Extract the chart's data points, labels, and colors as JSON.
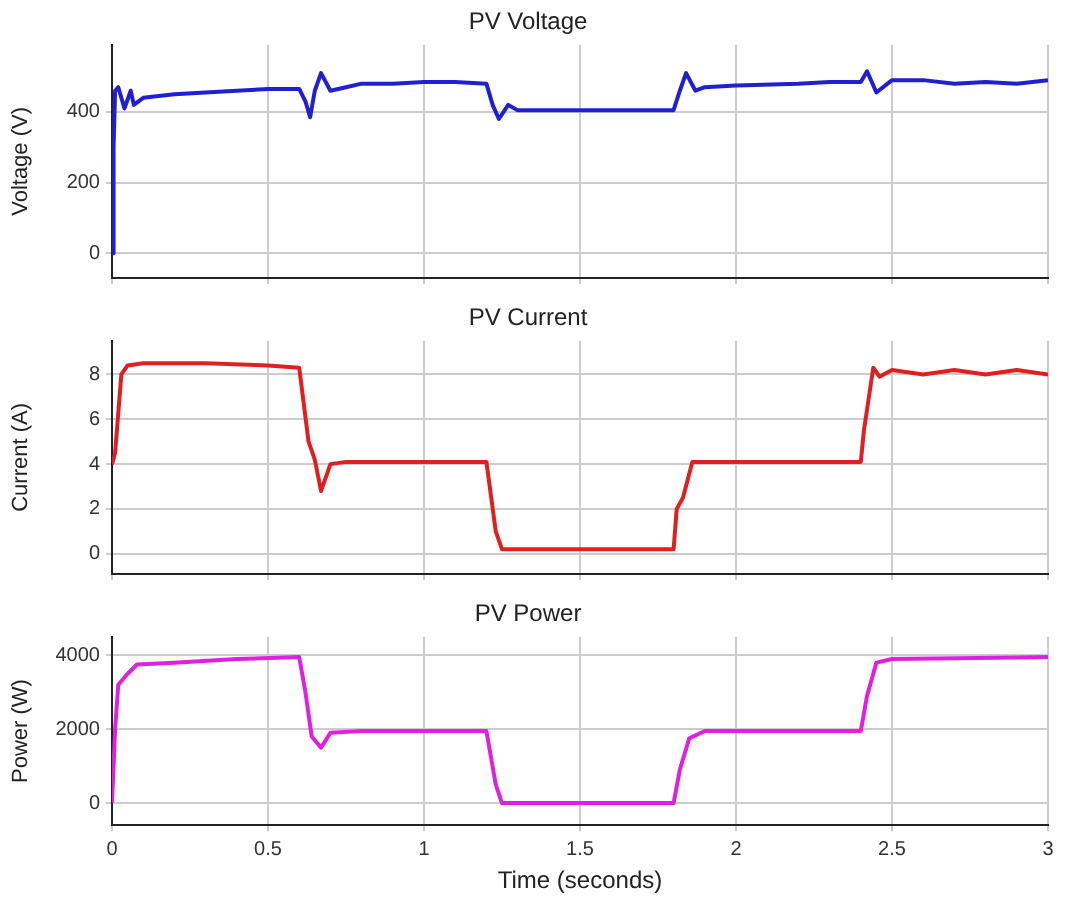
{
  "chart_data": [
    {
      "type": "line",
      "title": "PV Voltage",
      "ylabel": "Voltage (V)",
      "xlim": [
        0,
        3
      ],
      "xticks": [
        0,
        0.5,
        1,
        1.5,
        2,
        2.5,
        3
      ],
      "ylim": [
        -70,
        590
      ],
      "yticks": [
        0,
        200,
        400
      ],
      "grid": true,
      "tick_labels": "y",
      "legend": false,
      "series": [
        {
          "color": "#2020d0",
          "x": [
            0,
            0.005,
            0.01,
            0.02,
            0.04,
            0.06,
            0.07,
            0.1,
            0.2,
            0.3,
            0.4,
            0.5,
            0.6,
            0.62,
            0.635,
            0.65,
            0.67,
            0.7,
            0.75,
            0.8,
            0.9,
            1.0,
            1.1,
            1.2,
            1.22,
            1.24,
            1.27,
            1.3,
            1.4,
            1.5,
            1.6,
            1.7,
            1.8,
            1.82,
            1.84,
            1.87,
            1.9,
            2.0,
            2.2,
            2.3,
            2.4,
            2.42,
            2.45,
            2.5,
            2.6,
            2.7,
            2.8,
            2.9,
            3.0
          ],
          "values": [
            0,
            300,
            460,
            470,
            410,
            460,
            420,
            440,
            450,
            455,
            460,
            465,
            465,
            430,
            385,
            460,
            510,
            460,
            470,
            480,
            480,
            485,
            485,
            480,
            420,
            380,
            420,
            405,
            405,
            405,
            405,
            405,
            405,
            460,
            510,
            460,
            470,
            475,
            480,
            485,
            485,
            515,
            455,
            490,
            490,
            480,
            485,
            480,
            490
          ]
        }
      ]
    },
    {
      "type": "line",
      "title": "PV Current",
      "ylabel": "Current (A)",
      "xlim": [
        0,
        3
      ],
      "xticks": [
        0,
        0.5,
        1,
        1.5,
        2,
        2.5,
        3
      ],
      "ylim": [
        -0.9,
        9.5
      ],
      "yticks": [
        0,
        2,
        4,
        6,
        8
      ],
      "grid": true,
      "tick_labels": "y",
      "legend": false,
      "series": [
        {
          "color": "#e02020",
          "x": [
            0,
            0.01,
            0.03,
            0.05,
            0.1,
            0.3,
            0.5,
            0.6,
            0.63,
            0.65,
            0.67,
            0.7,
            0.75,
            1.0,
            1.2,
            1.23,
            1.25,
            1.5,
            1.8,
            1.81,
            1.83,
            1.86,
            2.0,
            2.2,
            2.4,
            2.41,
            2.44,
            2.46,
            2.5,
            2.6,
            2.7,
            2.8,
            2.9,
            3.0
          ],
          "values": [
            4,
            4.5,
            8.0,
            8.4,
            8.5,
            8.5,
            8.4,
            8.3,
            5,
            4.2,
            2.8,
            4.0,
            4.1,
            4.1,
            4.1,
            1,
            0.2,
            0.2,
            0.2,
            2.0,
            2.5,
            4.1,
            4.1,
            4.1,
            4.1,
            5.5,
            8.3,
            7.9,
            8.2,
            8.0,
            8.2,
            8.0,
            8.2,
            8.0
          ]
        }
      ]
    },
    {
      "type": "line",
      "title": "PV Power",
      "ylabel": "Power (W)",
      "xlabel": "Time (seconds)",
      "xlim": [
        0,
        3
      ],
      "xticks": [
        0,
        0.5,
        1,
        1.5,
        2,
        2.5,
        3
      ],
      "ylim": [
        -600,
        4500
      ],
      "yticks": [
        0,
        2000,
        4000
      ],
      "grid": true,
      "legend": false,
      "series": [
        {
          "color": "#e020e0",
          "x": [
            0,
            0.01,
            0.02,
            0.05,
            0.08,
            0.2,
            0.4,
            0.6,
            0.62,
            0.64,
            0.67,
            0.7,
            0.8,
            1.0,
            1.2,
            1.23,
            1.25,
            1.5,
            1.8,
            1.82,
            1.85,
            1.9,
            2.2,
            2.4,
            2.42,
            2.45,
            2.5,
            3.0
          ],
          "values": [
            0,
            2000,
            3200,
            3500,
            3750,
            3800,
            3900,
            3950,
            3000,
            1800,
            1500,
            1900,
            1950,
            1950,
            1950,
            500,
            0,
            0,
            0,
            900,
            1750,
            1950,
            1950,
            1950,
            2900,
            3800,
            3900,
            3950
          ]
        }
      ]
    }
  ]
}
